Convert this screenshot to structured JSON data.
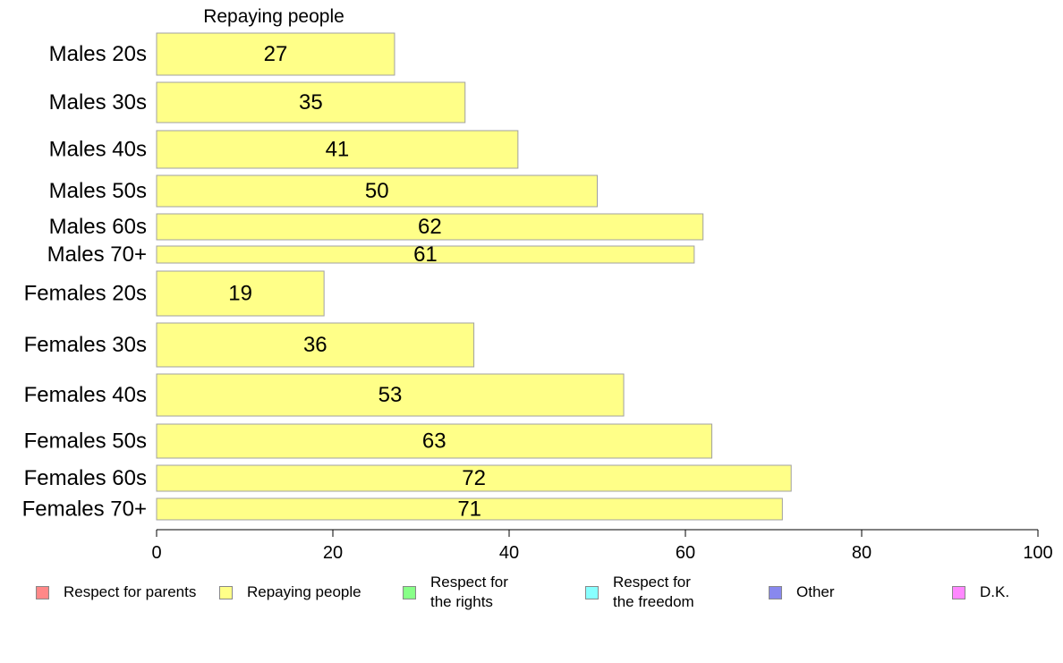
{
  "chart_data": {
    "type": "bar",
    "orientation": "horizontal",
    "title": "Repaying people",
    "categories": [
      "Males 20s",
      "Males 30s",
      "Males 40s",
      "Males 50s",
      "Males 60s",
      "Males 70+",
      "Females 20s",
      "Females 30s",
      "Females 40s",
      "Females 50s",
      "Females 60s",
      "Females 70+"
    ],
    "values": [
      27,
      35,
      41,
      50,
      62,
      61,
      19,
      36,
      53,
      63,
      72,
      71
    ],
    "data_labels": [
      "27",
      "35",
      "41",
      "50",
      "62",
      "61",
      "19",
      "36",
      "53",
      "63",
      "72",
      "71"
    ],
    "xlim": [
      0,
      100
    ],
    "x_ticks": [
      "0",
      "20",
      "40",
      "60",
      "80",
      "100"
    ],
    "grid": false,
    "bar_color": "#ffff88",
    "bar_border_color": "#a0a0a0",
    "legend_position": "bottom",
    "legend": [
      {
        "label": "Respect for parents",
        "color": "#ff8888"
      },
      {
        "label": "Repaying people",
        "color": "#ffff88"
      },
      {
        "label": "Respect for\nthe rights",
        "color": "#88ff88"
      },
      {
        "label": "Respect for\nthe freedom",
        "color": "#88ffff"
      },
      {
        "label": "Other",
        "color": "#8888ee"
      },
      {
        "label": "D.K.",
        "color": "#ff88ff"
      }
    ]
  }
}
